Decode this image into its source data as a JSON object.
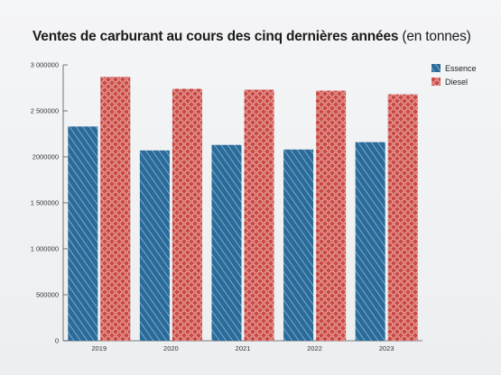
{
  "title": {
    "main": "Ventes de carburant au cours des cinq dernières années",
    "unit": "(en tonnes)"
  },
  "chart_data": {
    "type": "bar",
    "title": "Ventes de carburant au cours des cinq dernières années (en tonnes)",
    "xlabel": "",
    "ylabel": "",
    "categories": [
      "2019",
      "2020",
      "2021",
      "2022",
      "2023"
    ],
    "series": [
      {
        "name": "Essence",
        "values": [
          2330000,
          2070000,
          2130000,
          2080000,
          2160000
        ],
        "color": "#2b6b99"
      },
      {
        "name": "Diesel",
        "values": [
          2870000,
          2740000,
          2730000,
          2720000,
          2680000
        ],
        "color": "#c94a45"
      }
    ],
    "ylim": [
      0,
      3000000
    ],
    "yticks": [
      0,
      500000,
      1000000,
      1500000,
      2000000,
      2500000,
      3000000
    ],
    "ytick_labels": [
      "0",
      "500000",
      "1 000000",
      "1 500000",
      "2000000",
      "2 500000",
      "3 000000"
    ],
    "grid": false,
    "legend_position": "top-right"
  }
}
